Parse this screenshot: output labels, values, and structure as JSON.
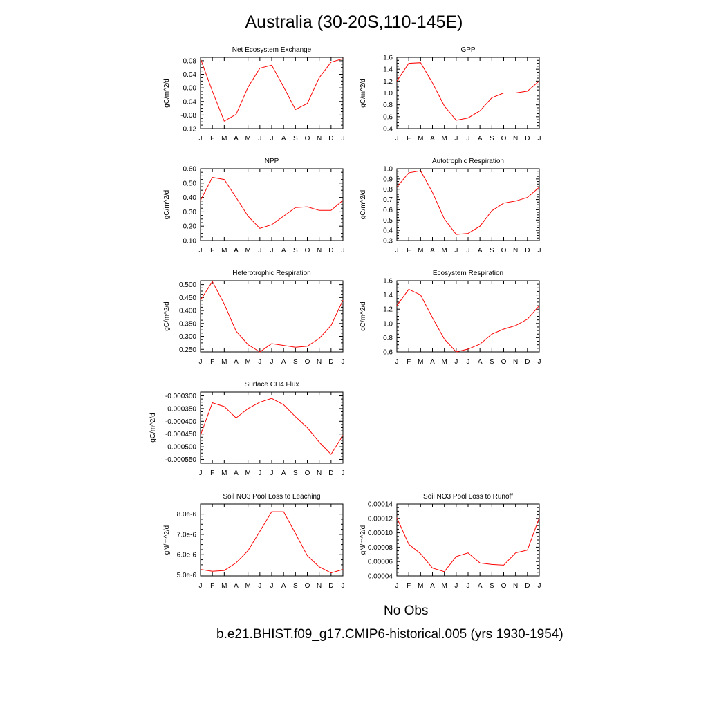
{
  "page": {
    "title": "Australia (30-20S,110-145E)",
    "legend": [
      {
        "label": "No Obs",
        "color": "#8a8ae8"
      },
      {
        "label": "b.e21.BHIST.f09_g17.CMIP6-historical.005 (yrs 1930-1954)",
        "color": "#ff2020"
      }
    ]
  },
  "colors": {
    "series": "#ff0000",
    "axis": "#000000"
  },
  "chart_data": [
    {
      "type": "line",
      "title": "Net Ecosystem Exchange",
      "ylabel": "gC/m^2/d",
      "categories": [
        "J",
        "F",
        "M",
        "A",
        "M",
        "J",
        "J",
        "A",
        "S",
        "O",
        "N",
        "D",
        "J"
      ],
      "values": [
        0.086,
        -0.01,
        -0.098,
        -0.078,
        0.002,
        0.058,
        0.067,
        0.003,
        -0.064,
        -0.046,
        0.03,
        0.076,
        0.086
      ],
      "ylim": [
        -0.12,
        0.09
      ],
      "yticks": [
        -0.12,
        -0.08,
        -0.04,
        0.0,
        0.04,
        0.08
      ],
      "ytick_labels": [
        "-0.12",
        "-0.08",
        "-0.04",
        "0.00",
        "0.04",
        "0.08"
      ],
      "grid": false
    },
    {
      "type": "line",
      "title": "GPP",
      "ylabel": "gC/m^2/d",
      "categories": [
        "J",
        "F",
        "M",
        "A",
        "M",
        "J",
        "J",
        "A",
        "S",
        "O",
        "N",
        "D",
        "J"
      ],
      "values": [
        1.2,
        1.5,
        1.51,
        1.17,
        0.78,
        0.54,
        0.58,
        0.7,
        0.92,
        1.0,
        1.0,
        1.03,
        1.2
      ],
      "ylim": [
        0.4,
        1.6
      ],
      "yticks": [
        0.4,
        0.6,
        0.8,
        1.0,
        1.2,
        1.4,
        1.6
      ],
      "ytick_labels": [
        "0.4",
        "0.6",
        "0.8",
        "1.0",
        "1.2",
        "1.4",
        "1.6"
      ],
      "grid": false
    },
    {
      "type": "line",
      "title": "NPP",
      "ylabel": "gC/m^2/d",
      "categories": [
        "J",
        "F",
        "M",
        "A",
        "M",
        "J",
        "J",
        "A",
        "S",
        "O",
        "N",
        "D",
        "J"
      ],
      "values": [
        0.38,
        0.54,
        0.525,
        0.4,
        0.27,
        0.185,
        0.21,
        0.27,
        0.33,
        0.335,
        0.31,
        0.31,
        0.38
      ],
      "ylim": [
        0.1,
        0.6
      ],
      "yticks": [
        0.1,
        0.2,
        0.3,
        0.4,
        0.5,
        0.6
      ],
      "ytick_labels": [
        "0.10",
        "0.20",
        "0.30",
        "0.40",
        "0.50",
        "0.60"
      ],
      "grid": false
    },
    {
      "type": "line",
      "title": "Autotrophic Respiration",
      "ylabel": "gC/m^2/d",
      "categories": [
        "J",
        "F",
        "M",
        "A",
        "M",
        "J",
        "J",
        "A",
        "S",
        "O",
        "N",
        "D",
        "J"
      ],
      "values": [
        0.82,
        0.96,
        0.98,
        0.77,
        0.51,
        0.36,
        0.37,
        0.44,
        0.59,
        0.665,
        0.685,
        0.72,
        0.82
      ],
      "ylim": [
        0.3,
        1.0
      ],
      "yticks": [
        0.3,
        0.4,
        0.5,
        0.6,
        0.7,
        0.8,
        0.9,
        1.0
      ],
      "ytick_labels": [
        "0.3",
        "0.4",
        "0.5",
        "0.6",
        "0.7",
        "0.8",
        "0.9",
        "1.0"
      ],
      "grid": false
    },
    {
      "type": "line",
      "title": "Heterotrophic Respiration",
      "ylabel": "gC/m^2/d",
      "categories": [
        "J",
        "F",
        "M",
        "A",
        "M",
        "J",
        "J",
        "A",
        "S",
        "O",
        "N",
        "D",
        "J"
      ],
      "values": [
        0.44,
        0.512,
        0.425,
        0.32,
        0.268,
        0.24,
        0.272,
        0.265,
        0.258,
        0.262,
        0.292,
        0.342,
        0.44
      ],
      "ylim": [
        0.24,
        0.515
      ],
      "yticks": [
        0.25,
        0.3,
        0.35,
        0.4,
        0.45,
        0.5
      ],
      "ytick_labels": [
        "0.250",
        "0.300",
        "0.350",
        "0.400",
        "0.450",
        "0.500"
      ],
      "grid": false
    },
    {
      "type": "line",
      "title": "Ecosystem Respiration",
      "ylabel": "gC/m^2/d",
      "categories": [
        "J",
        "F",
        "M",
        "A",
        "M",
        "J",
        "J",
        "A",
        "S",
        "O",
        "N",
        "D",
        "J"
      ],
      "values": [
        1.25,
        1.48,
        1.4,
        1.08,
        0.78,
        0.6,
        0.64,
        0.71,
        0.85,
        0.92,
        0.97,
        1.06,
        1.25
      ],
      "ylim": [
        0.6,
        1.6
      ],
      "yticks": [
        0.6,
        0.8,
        1.0,
        1.2,
        1.4,
        1.6
      ],
      "ytick_labels": [
        "0.6",
        "0.8",
        "1.0",
        "1.2",
        "1.4",
        "1.6"
      ],
      "grid": false
    },
    {
      "type": "line",
      "title": "Surface CH4 Flux",
      "ylabel": "gC/m^2/d",
      "categories": [
        "J",
        "F",
        "M",
        "A",
        "M",
        "J",
        "J",
        "A",
        "S",
        "O",
        "N",
        "D",
        "J"
      ],
      "values": [
        -0.000455,
        -0.000327,
        -0.000342,
        -0.000387,
        -0.00035,
        -0.000325,
        -0.00031,
        -0.000335,
        -0.000382,
        -0.000425,
        -0.000482,
        -0.00053,
        -0.000455
      ],
      "ylim": [
        -0.000565,
        -0.000285
      ],
      "yticks": [
        -0.00055,
        -0.0005,
        -0.00045,
        -0.0004,
        -0.00035,
        -0.0003
      ],
      "ytick_labels": [
        "-0.000550",
        "-0.000500",
        "-0.000450",
        "-0.000400",
        "-0.000350",
        "-0.000300"
      ],
      "grid": false
    },
    {
      "type": "line",
      "title": "Soil NO3 Pool Loss to Leaching",
      "ylabel": "gN/m^2/d",
      "categories": [
        "J",
        "F",
        "M",
        "A",
        "M",
        "J",
        "J",
        "A",
        "S",
        "O",
        "N",
        "D",
        "J"
      ],
      "values": [
        5.27e-06,
        5.18e-06,
        5.22e-06,
        5.6e-06,
        6.2e-06,
        7.15e-06,
        8.12e-06,
        8.12e-06,
        7.05e-06,
        5.95e-06,
        5.4e-06,
        5.1e-06,
        5.27e-06
      ],
      "ylim": [
        4.95e-06,
        8.5e-06
      ],
      "yticks": [
        5e-06,
        6e-06,
        7e-06,
        8e-06
      ],
      "ytick_labels": [
        "5.0e-6",
        "6.0e-6",
        "7.0e-6",
        "8.0e-6"
      ],
      "grid": false
    },
    {
      "type": "line",
      "title": "Soil NO3 Pool Loss to Runoff",
      "ylabel": "gN/m^2/d",
      "categories": [
        "J",
        "F",
        "M",
        "A",
        "M",
        "J",
        "J",
        "A",
        "S",
        "O",
        "N",
        "D",
        "J"
      ],
      "values": [
        0.000121,
        8.4e-05,
        7.1e-05,
        5.1e-05,
        4.6e-05,
        6.7e-05,
        7.2e-05,
        5.8e-05,
        5.6e-05,
        5.5e-05,
        7.2e-05,
        7.6e-05,
        0.000121
      ],
      "ylim": [
        4e-05,
        0.00014
      ],
      "yticks": [
        4e-05,
        6e-05,
        8e-05,
        0.0001,
        0.00012,
        0.00014
      ],
      "ytick_labels": [
        "0.00004",
        "0.00006",
        "0.00008",
        "0.00010",
        "0.00012",
        "0.00014"
      ],
      "grid": false
    }
  ]
}
